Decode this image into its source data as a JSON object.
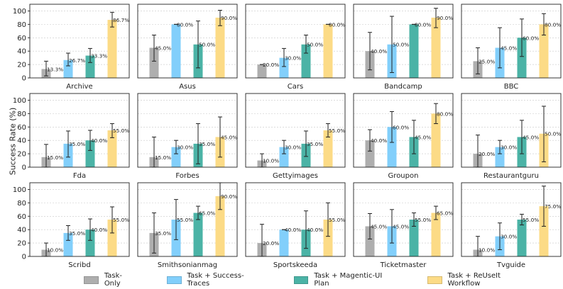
{
  "chart_data": {
    "type": "bar",
    "ylabel": "Success Rate (%)",
    "ylim": [
      0,
      110
    ],
    "yticks": [
      0,
      20,
      40,
      60,
      80,
      100
    ],
    "grid": "y-dotted",
    "legend": {
      "placement": "bottom",
      "entries": [
        {
          "name": "Task-Only",
          "color": "#aeaeae"
        },
        {
          "name": "Task + Success-Traces",
          "color": "#82cffb"
        },
        {
          "name": "Task + Magentic-UI Plan",
          "color": "#4bb3a6"
        },
        {
          "name": "Task + ReUseIt Workflow",
          "color": "#fcdb86"
        }
      ]
    },
    "panels": [
      {
        "title": "Archive",
        "values": [
          13.3,
          26.7,
          33.3,
          86.7
        ],
        "labels": [
          "13.3%",
          "26.7%",
          "33.3%",
          "86.7%"
        ],
        "err_low": [
          3,
          18,
          23,
          76
        ],
        "err_high": [
          25,
          37,
          44,
          98
        ]
      },
      {
        "title": "Asus",
        "values": [
          45,
          80,
          50,
          90
        ],
        "labels": [
          "45.0%",
          "80.0%",
          "50.0%",
          "90.0%"
        ],
        "err_low": [
          25,
          80,
          15,
          78
        ],
        "err_high": [
          64,
          80,
          85,
          101
        ]
      },
      {
        "title": "Cars",
        "values": [
          20,
          30,
          50,
          80
        ],
        "labels": [
          "20.0%",
          "30.0%",
          "50.0%",
          "80.0%"
        ],
        "err_low": [
          20,
          17,
          37,
          80
        ],
        "err_high": [
          20,
          44,
          64,
          80
        ]
      },
      {
        "title": "Bandcamp",
        "values": [
          40,
          50,
          80,
          90
        ],
        "labels": [
          "40.0%",
          "50.0%",
          "80.0%",
          "90.0%"
        ],
        "err_low": [
          12,
          8,
          80,
          75
        ],
        "err_high": [
          68,
          92,
          80,
          104
        ]
      },
      {
        "title": "BBC",
        "values": [
          25,
          45,
          60,
          80
        ],
        "labels": [
          "25.0%",
          "45.0%",
          "60.0%",
          "80.0%"
        ],
        "err_low": [
          6,
          15,
          32,
          64
        ],
        "err_high": [
          45,
          75,
          88,
          96
        ]
      },
      {
        "title": "Fda",
        "values": [
          15,
          35,
          40,
          55
        ],
        "labels": [
          "15.0%",
          "35.0%",
          "40.0%",
          "55.0%"
        ],
        "err_low": [
          0,
          15,
          25,
          44
        ],
        "err_high": [
          34,
          54,
          55,
          65
        ]
      },
      {
        "title": "Forbes",
        "values": [
          15,
          30,
          35,
          45
        ],
        "labels": [
          "15.0%",
          "30.0%",
          "35.0%",
          "45.0%"
        ],
        "err_low": [
          0,
          20,
          5,
          15
        ],
        "err_high": [
          45,
          40,
          65,
          75
        ]
      },
      {
        "title": "Gettyimages",
        "values": [
          10,
          30,
          35,
          55
        ],
        "labels": [
          "10.0%",
          "30.0%",
          "35.0%",
          "55.0%"
        ],
        "err_low": [
          0,
          20,
          16,
          45
        ],
        "err_high": [
          20,
          40,
          54,
          65
        ]
      },
      {
        "title": "Groupon",
        "values": [
          40,
          60,
          45,
          80
        ],
        "labels": [
          "40.0%",
          "60.0%",
          "45.0%",
          "80.0%"
        ],
        "err_low": [
          24,
          37,
          20,
          65
        ],
        "err_high": [
          56,
          83,
          70,
          95
        ]
      },
      {
        "title": "Restaurantguru",
        "values": [
          20,
          30,
          45,
          50
        ],
        "labels": [
          "20.0%",
          "30.0%",
          "45.0%",
          "50.0%"
        ],
        "err_low": [
          0,
          20,
          20,
          8
        ],
        "err_high": [
          48,
          40,
          70,
          91
        ]
      },
      {
        "title": "Scribd",
        "values": [
          10,
          35,
          40,
          55
        ],
        "labels": [
          "10.0%",
          "35.0%",
          "40.0%",
          "55.0%"
        ],
        "err_low": [
          0,
          24,
          24,
          35
        ],
        "err_high": [
          20,
          46,
          56,
          74
        ]
      },
      {
        "title": "Smithsonianmag",
        "values": [
          35,
          55,
          65,
          90
        ],
        "labels": [
          "35.0%",
          "55.0%",
          "65.0%",
          "90.0%"
        ],
        "err_low": [
          5,
          25,
          55,
          70
        ],
        "err_high": [
          65,
          85,
          75,
          110
        ]
      },
      {
        "title": "Sportskeeda",
        "values": [
          20,
          40,
          40,
          55
        ],
        "labels": [
          "20.0%",
          "40.0%",
          "40.0%",
          "55.0%"
        ],
        "err_low": [
          0,
          40,
          12,
          30
        ],
        "err_high": [
          48,
          40,
          68,
          80
        ]
      },
      {
        "title": "Ticketmaster",
        "values": [
          45,
          45,
          55,
          65
        ],
        "labels": [
          "45.0%",
          "45.0%",
          "55.0%",
          "65.0%"
        ],
        "err_low": [
          26,
          20,
          45,
          55
        ],
        "err_high": [
          64,
          70,
          65,
          75
        ]
      },
      {
        "title": "Tvguide",
        "values": [
          10,
          30,
          55,
          75
        ],
        "labels": [
          "10.0%",
          "30.0%",
          "55.0%",
          "75.0%"
        ],
        "err_low": [
          0,
          10,
          47,
          45
        ],
        "err_high": [
          30,
          50,
          63,
          105
        ]
      }
    ]
  }
}
